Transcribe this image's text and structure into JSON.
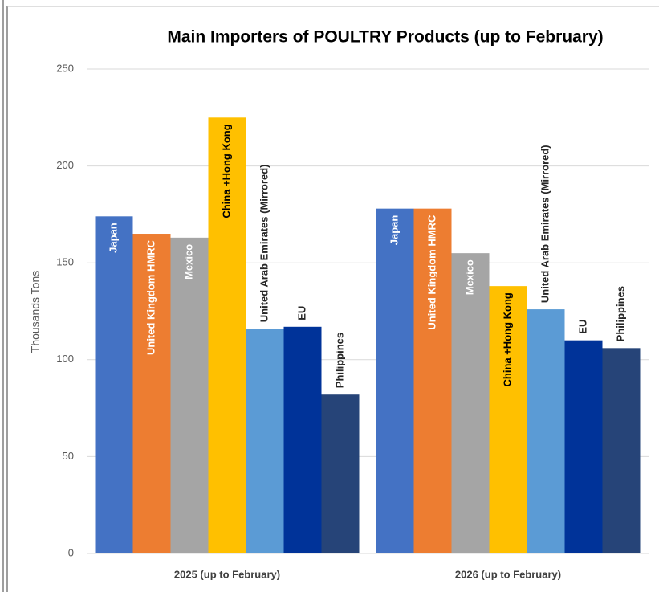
{
  "chart_data": {
    "type": "bar",
    "title": "Main Importers of POULTRY Products (up to February)",
    "y_label": "Thousands Tons",
    "categories": [
      "2025 (up to February)",
      "2026 (up to February)"
    ],
    "series": [
      {
        "name": "Japan",
        "color": "#4472c4",
        "values": [
          174,
          178
        ]
      },
      {
        "name": "United Kingdom HMRC",
        "color": "#ed7d31",
        "values": [
          165,
          178
        ]
      },
      {
        "name": "Mexico",
        "color": "#a5a5a5",
        "values": [
          163,
          155
        ]
      },
      {
        "name": "China +Hong Kong",
        "color": "#ffc000",
        "values": [
          225,
          138
        ]
      },
      {
        "name": "United Arab Emirates (Mirrored)",
        "color": "#5b9bd5",
        "values": [
          116,
          126
        ]
      },
      {
        "name": "EU",
        "color": "#003399",
        "values": [
          117,
          110
        ]
      },
      {
        "name": "Philippines",
        "color": "#264478",
        "values": [
          82,
          106
        ]
      }
    ],
    "ylim": [
      0,
      250
    ],
    "yticks": [
      0,
      50,
      100,
      150,
      200,
      250
    ],
    "grid": true
  }
}
